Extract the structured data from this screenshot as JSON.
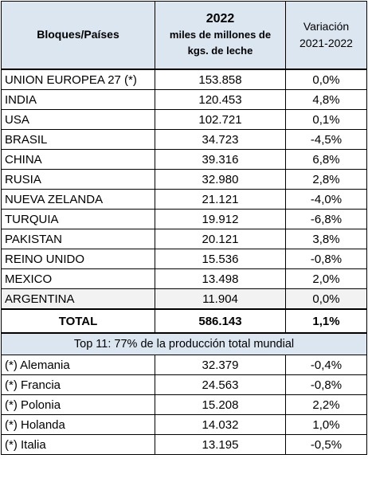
{
  "header": {
    "col1": "Bloques/Países",
    "col2_year": "2022",
    "col2_line2": "miles de millones de",
    "col2_line3": "kgs. de leche",
    "col3_line1": "Variación",
    "col3_line2": "2021-2022"
  },
  "rows": [
    {
      "country": "UNION EUROPEA 27 (*)",
      "value": "153.858",
      "change": "0,0%"
    },
    {
      "country": "INDIA",
      "value": "120.453",
      "change": "4,8%"
    },
    {
      "country": "USA",
      "value": "102.721",
      "change": "0,1%"
    },
    {
      "country": "BRASIL",
      "value": "34.723",
      "change": "-4,5%"
    },
    {
      "country": "CHINA",
      "value": "39.316",
      "change": "6,8%"
    },
    {
      "country": "RUSIA",
      "value": "32.980",
      "change": "2,8%"
    },
    {
      "country": "NUEVA ZELANDA",
      "value": "21.121",
      "change": "-4,0%"
    },
    {
      "country": "TURQUIA",
      "value": "19.912",
      "change": "-6,8%"
    },
    {
      "country": "PAKISTAN",
      "value": "20.121",
      "change": "3,8%"
    },
    {
      "country": "REINO UNIDO",
      "value": "15.536",
      "change": "-0,8%"
    },
    {
      "country": "MEXICO",
      "value": "13.498",
      "change": "2,0%"
    },
    {
      "country": "ARGENTINA",
      "value": "11.904",
      "change": "0,0%"
    }
  ],
  "total": {
    "label": "TOTAL",
    "value": "586.143",
    "change": "1,1%"
  },
  "note": "Top 11: 77% de la producción total mundial",
  "sub_rows": [
    {
      "country": "(*) Alemania",
      "value": "32.379",
      "change": "-0,4%"
    },
    {
      "country": "(*) Francia",
      "value": "24.563",
      "change": "-0,8%"
    },
    {
      "country": "(*) Polonia",
      "value": "15.208",
      "change": "2,2%"
    },
    {
      "country": "(*) Holanda",
      "value": "14.032",
      "change": "1,0%"
    },
    {
      "country": "(*) Italia",
      "value": "13.195",
      "change": "-0,5%"
    }
  ],
  "colors": {
    "header_bg": "#dce6f1",
    "shade_bg": "#f2f2f2"
  }
}
